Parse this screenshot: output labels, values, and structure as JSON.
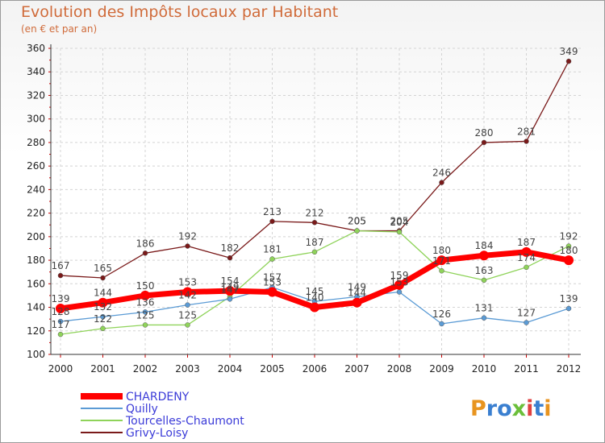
{
  "chart_data": {
    "type": "line",
    "title": "Evolution des Impôts locaux par Habitant",
    "subtitle": "(en € et par an)",
    "xlabel": "",
    "ylabel": "",
    "categories": [
      "2000",
      "2001",
      "2002",
      "2003",
      "2004",
      "2005",
      "2006",
      "2007",
      "2008",
      "2009",
      "2010",
      "2011",
      "2012"
    ],
    "ylim": [
      100,
      360
    ],
    "yticks": [
      100,
      120,
      140,
      160,
      180,
      200,
      220,
      240,
      260,
      280,
      300,
      320,
      340,
      360
    ],
    "grid": true,
    "legend_position": "bottom-left",
    "series": [
      {
        "name": "Grivy-Loisy",
        "color": "#7a1a1a",
        "width": 1.3,
        "marker": 3,
        "values": [
          167,
          165,
          186,
          192,
          182,
          213,
          212,
          205,
          205,
          246,
          280,
          281,
          349
        ]
      },
      {
        "name": "Tourcelles-Chaumont",
        "color": "#8fd35a",
        "width": 1.3,
        "marker": 3,
        "values": [
          117,
          122,
          125,
          125,
          149,
          181,
          187,
          205,
          204,
          171,
          163,
          174,
          192
        ]
      },
      {
        "name": "Quilly",
        "color": "#5b9bd5",
        "width": 1.3,
        "marker": 3,
        "values": [
          128,
          132,
          136,
          142,
          147,
          157,
          145,
          149,
          153,
          126,
          131,
          127,
          139
        ]
      },
      {
        "name": "CHARDENY",
        "color": "#ff0000",
        "width": 7,
        "marker": 6,
        "values": [
          139,
          144,
          150,
          153,
          154,
          153,
          140,
          144,
          159,
          180,
          184,
          187,
          180
        ]
      }
    ]
  },
  "logo": {
    "text": "Proxiti"
  }
}
